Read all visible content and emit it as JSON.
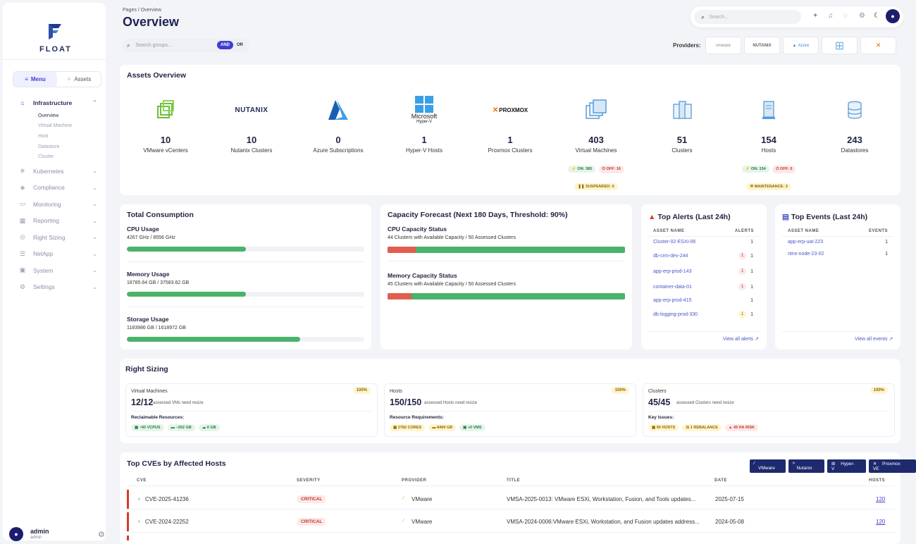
{
  "brand": {
    "name": "FLOAT"
  },
  "sidebar": {
    "toggle": {
      "menu": "Menu",
      "assets": "Assets"
    },
    "items": [
      {
        "label": "Infrastructure",
        "icon": "home-icon"
      },
      {
        "label": "Kubernetes",
        "icon": "kubernetes-icon"
      },
      {
        "label": "Compliance",
        "icon": "shield-icon"
      },
      {
        "label": "Monitoring",
        "icon": "monitor-icon"
      },
      {
        "label": "Reporting",
        "icon": "grid-icon"
      },
      {
        "label": "Right Sizing",
        "icon": "globe-icon"
      },
      {
        "label": "NetApp",
        "icon": "list-icon"
      },
      {
        "label": "System",
        "icon": "system-icon"
      },
      {
        "label": "Settings",
        "icon": "gear-icon"
      }
    ],
    "subitems": [
      "Overview",
      "Virtual Machine",
      "Host",
      "Datastore",
      "Cluster"
    ],
    "user": {
      "name": "admin",
      "role": "admin"
    }
  },
  "header": {
    "crumb": "Pages",
    "crumb_sep": "/",
    "crumb_current": "Overview",
    "title": "Overview",
    "search_placeholder": "Search..."
  },
  "filter": {
    "placeholder": "Search groups...",
    "and": "AND",
    "or": "OR"
  },
  "providers": {
    "label": "Providers:",
    "items": [
      "vmware",
      "NUTANIX",
      "Azure",
      "",
      "PROXMOX"
    ]
  },
  "assets": {
    "title": "Assets Overview",
    "items": [
      {
        "value": "10",
        "label": "VMware vCenters"
      },
      {
        "value": "10",
        "label": "Nutanix Clusters"
      },
      {
        "value": "0",
        "label": "Azure Subscriptions"
      },
      {
        "value": "1",
        "label": "Hyper-V Hosts"
      },
      {
        "value": "1",
        "label": "Proxmox Clusters"
      },
      {
        "value": "403",
        "label": "Virtual Machines"
      },
      {
        "value": "51",
        "label": "Clusters"
      },
      {
        "value": "154",
        "label": "Hosts"
      },
      {
        "value": "243",
        "label": "Datastores"
      }
    ],
    "logo_text": {
      "nutanix": "NUTANIX",
      "ms": "Microsoft",
      "hyperv": "Hyper-V",
      "proxmox": "PROXMOX"
    },
    "vm_pills": {
      "on": "ON: 385",
      "off": "OFF: 16",
      "suspended": "SUSPENDED: 0"
    },
    "host_pills": {
      "on": "ON: 154",
      "off": "OFF: 0",
      "maintenance": "MAINTENANCE: 3"
    }
  },
  "consumption": {
    "title": "Total Consumption",
    "items": [
      {
        "label": "CPU Usage",
        "value": "4267 GHz / 8556 GHz",
        "pct": 0.5
      },
      {
        "label": "Memory Usage",
        "value": "18785.64 GB / 37583.62 GB",
        "pct": 0.5
      },
      {
        "label": "Storage Usage",
        "value": "1183986 GB / 1618972 GB",
        "pct": 0.73
      }
    ]
  },
  "forecast": {
    "title": "Capacity Forecast (Next 180 Days, Threshold: 90%)",
    "items": [
      {
        "label": "CPU Capacity Status",
        "value": "44 Clusters with Available Capacity / 50 Assessed Clusters",
        "available": 0.88
      },
      {
        "label": "Memory Capacity Status",
        "value": "45 Clusters with Available Capacity / 50 Assessed Clusters",
        "available": 0.9
      }
    ]
  },
  "alerts": {
    "title": "Top Alerts (Last 24h)",
    "col1": "ASSET NAME",
    "col2": "ALERTS",
    "link": "View all alerts",
    "rows": [
      {
        "name": "Cluster-02-ESXi-06",
        "badge": "",
        "count": "1"
      },
      {
        "name": "db-crm-dev-244",
        "badge": "1",
        "count": "1"
      },
      {
        "name": "app-erp-prod-143",
        "badge": "1",
        "count": "1"
      },
      {
        "name": "container-data-01",
        "badge": "1",
        "count": "1"
      },
      {
        "name": "app-erp-prod-415",
        "badge": "",
        "count": "1"
      },
      {
        "name": "db-logging-prod-330",
        "badge": "1",
        "count": "1"
      }
    ]
  },
  "events": {
    "title": "Top Events (Last 24h)",
    "col1": "ASSET NAME",
    "col2": "EVENTS",
    "link": "View all events",
    "rows": [
      {
        "name": "app-erp-uat-223",
        "count": "1"
      },
      {
        "name": "ntnx-node-23-02",
        "count": "1"
      }
    ]
  },
  "right_sizing": {
    "title": "Right Sizing",
    "cards": [
      {
        "head": "Virtual Machines",
        "pct": "100%",
        "big": "12/12",
        "small": "assessed VMs need resize",
        "key": "Reclaimable Resources:",
        "chips": [
          "~60 VCPUS",
          "~252 GB",
          "0 GB"
        ]
      },
      {
        "head": "Hosts",
        "pct": "100%",
        "big": "150/150",
        "small": "assessed Hosts need resize",
        "key": "Resource Requirements:",
        "chips": [
          "2782 CORES",
          "8469 GB",
          "+0 VMS"
        ]
      },
      {
        "head": "Clusters",
        "pct": "100%",
        "big": "45/45",
        "small": "assessed Clusters need resize",
        "key": "Key Issues:",
        "chips": [
          "90 HOSTS",
          "1 REBALANCE",
          "45 HA RISK"
        ]
      }
    ]
  },
  "cves": {
    "title": "Top CVEs by Affected Hosts",
    "badges": [
      "VMware",
      "Nutanix",
      "Hyper-V",
      "Proxmox VE"
    ],
    "cols": [
      "CVE",
      "SEVERITY",
      "PROVIDER",
      "TITLE",
      "DATE",
      "HOSTS"
    ],
    "rows": [
      {
        "id": "CVE-2025-41236",
        "severity": "CRITICAL",
        "provider": "VMware",
        "title": "VMSA-2025-0013: VMware ESXi, Workstation, Fusion, and Tools updates...",
        "date": "2025-07-15",
        "hosts": "120"
      },
      {
        "id": "CVE-2024-22252",
        "severity": "CRITICAL",
        "provider": "VMware",
        "title": "VMSA-2024-0006:VMware ESXi, Workstation, and Fusion updates address...",
        "date": "2024-05-08",
        "hosts": "120"
      }
    ]
  },
  "colors": {
    "accent": "#3f3fd1",
    "ok": "#4ab26b",
    "danger": "#e25d4e",
    "navy": "#1e2a6e"
  }
}
